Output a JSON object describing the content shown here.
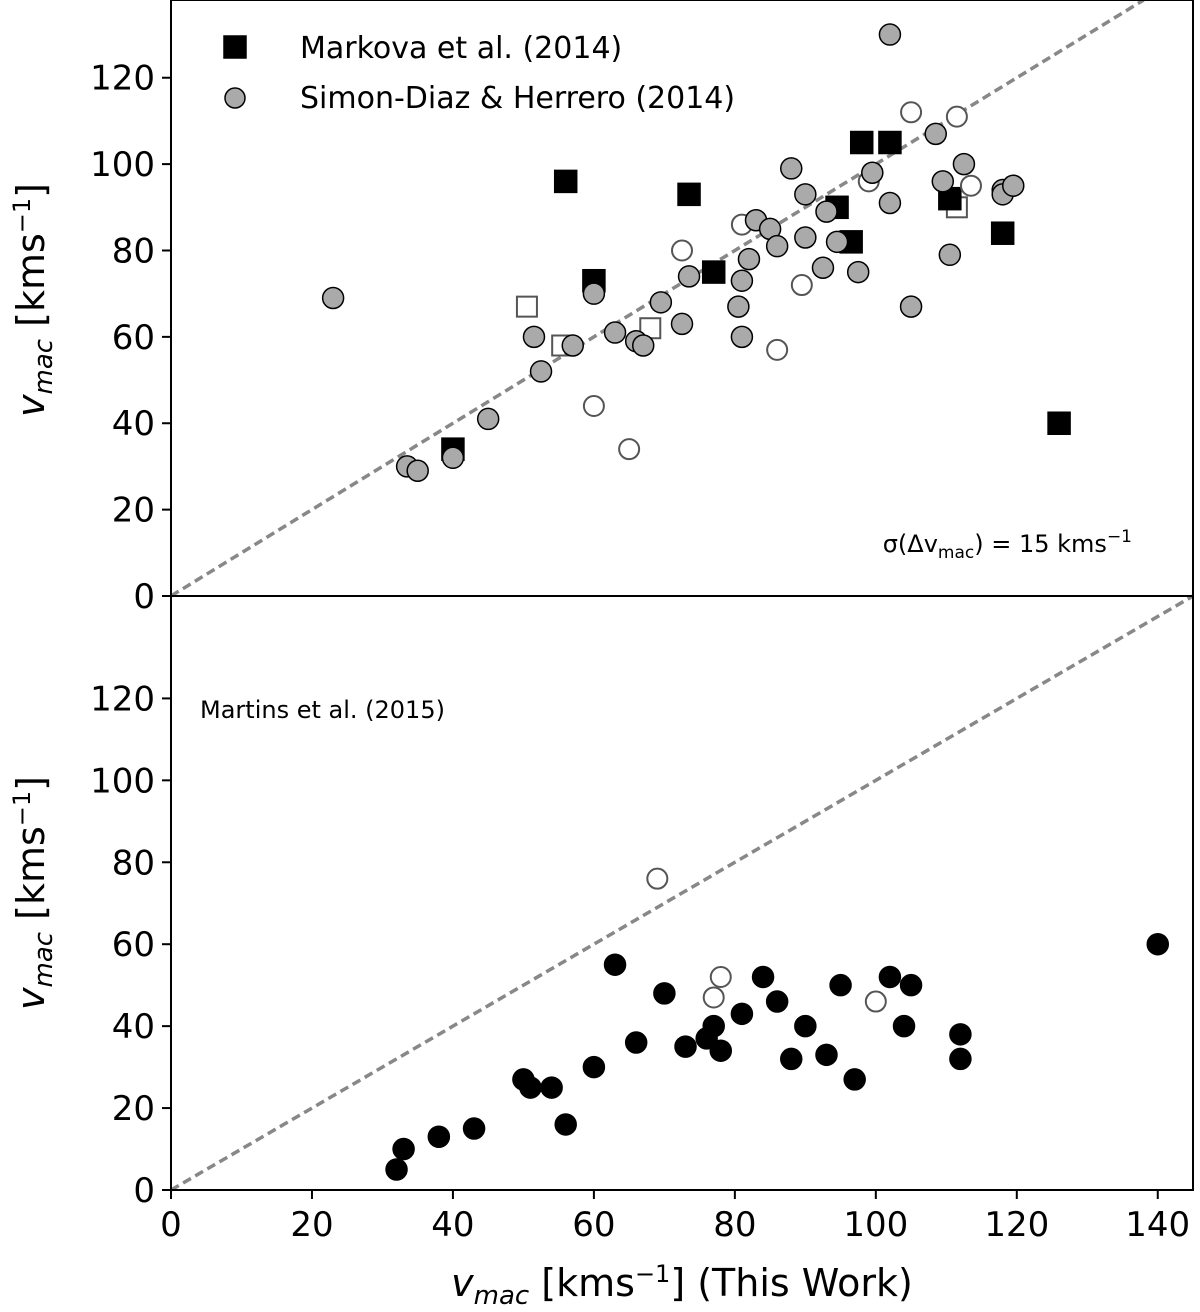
{
  "chart_data": [
    {
      "type": "scatter",
      "panel": "top",
      "xlim": [
        0,
        145
      ],
      "ylim": [
        0,
        138
      ],
      "yticks": [
        0,
        20,
        40,
        60,
        80,
        100,
        120
      ],
      "y_tick_labels": [
        "0",
        "20",
        "40",
        "60",
        "80",
        "100",
        "120"
      ],
      "ylabel": {
        "main": "v",
        "sub": "mac",
        "unit_pre": " [kms",
        "unit_sup": "−1",
        "unit_post": "]"
      },
      "identity_line": true,
      "legend_position": "top-left",
      "annotation": {
        "prefix": "σ(Δv",
        "sub": "mac",
        "mid": ") = 15 kms",
        "sup": "−1"
      },
      "series": [
        {
          "name": "Markova et al. (2014)",
          "marker": "square",
          "color": "#000000",
          "filled": [
            [
              56,
              96
            ],
            [
              60,
              73
            ],
            [
              40,
              34
            ],
            [
              73.5,
              93
            ],
            [
              77,
              75
            ],
            [
              94.5,
              90
            ],
            [
              96.5,
              82
            ],
            [
              98,
              105
            ],
            [
              102,
              105
            ],
            [
              110.5,
              92
            ],
            [
              118,
              84
            ],
            [
              126,
              40
            ]
          ],
          "open": [
            [
              50.5,
              67
            ],
            [
              55.5,
              58
            ],
            [
              68,
              62
            ],
            [
              111.5,
              90
            ]
          ]
        },
        {
          "name": "Simon-Diaz & Herrero (2014)",
          "marker": "circle",
          "color": "#aaaaaa",
          "filled": [
            [
              23,
              69
            ],
            [
              33.5,
              30
            ],
            [
              35,
              29
            ],
            [
              40,
              32
            ],
            [
              45,
              41
            ],
            [
              51.5,
              60
            ],
            [
              52.5,
              52
            ],
            [
              57,
              58
            ],
            [
              60,
              70
            ],
            [
              63,
              61
            ],
            [
              66,
              59
            ],
            [
              67,
              58
            ],
            [
              69.5,
              68
            ],
            [
              72.5,
              63
            ],
            [
              73.5,
              74
            ],
            [
              80.5,
              67
            ],
            [
              81,
              73
            ],
            [
              81,
              60
            ],
            [
              82,
              78
            ],
            [
              83,
              87
            ],
            [
              85,
              85
            ],
            [
              86,
              81
            ],
            [
              88,
              99
            ],
            [
              90,
              93
            ],
            [
              90,
              83
            ],
            [
              92.5,
              76
            ],
            [
              93,
              89
            ],
            [
              94.5,
              82
            ],
            [
              97.5,
              75
            ],
            [
              99.5,
              98
            ],
            [
              102,
              91
            ],
            [
              102,
              130
            ],
            [
              105,
              67
            ],
            [
              108.5,
              107
            ],
            [
              109.5,
              96
            ],
            [
              110.5,
              79
            ],
            [
              112.5,
              100
            ],
            [
              118,
              94
            ],
            [
              118,
              93
            ],
            [
              119.5,
              95
            ]
          ],
          "open": [
            [
              72.5,
              80
            ],
            [
              81,
              86
            ],
            [
              89.5,
              72
            ],
            [
              86,
              57
            ],
            [
              60,
              44
            ],
            [
              65,
              34
            ],
            [
              99,
              96
            ],
            [
              105,
              112
            ],
            [
              111.5,
              111
            ],
            [
              113.5,
              95
            ]
          ]
        }
      ]
    },
    {
      "type": "scatter",
      "panel": "bottom",
      "xlim": [
        0,
        145
      ],
      "ylim": [
        0,
        145
      ],
      "xticks": [
        0,
        20,
        40,
        60,
        80,
        100,
        120,
        140
      ],
      "x_tick_labels": [
        "0",
        "20",
        "40",
        "60",
        "80",
        "100",
        "120",
        "140"
      ],
      "yticks": [
        0,
        20,
        40,
        60,
        80,
        100,
        120
      ],
      "y_tick_labels": [
        "0",
        "20",
        "40",
        "60",
        "80",
        "100",
        "120"
      ],
      "xlabel": {
        "main": "v",
        "sub": "mac",
        "unit_pre": " [kms",
        "unit_sup": "−1",
        "unit_post": "] (This Work)"
      },
      "ylabel": {
        "main": "v",
        "sub": "mac",
        "unit_pre": " [kms",
        "unit_sup": "−1",
        "unit_post": "]"
      },
      "identity_line": true,
      "annotation": "Martins et al. (2015)",
      "series": [
        {
          "name": "Martins et al. (2015)",
          "marker": "circle",
          "color": "#000000",
          "filled": [
            [
              32,
              5
            ],
            [
              33,
              10
            ],
            [
              38,
              13
            ],
            [
              43,
              15
            ],
            [
              50,
              27
            ],
            [
              51,
              25
            ],
            [
              54,
              25
            ],
            [
              56,
              16
            ],
            [
              60,
              30
            ],
            [
              63,
              55
            ],
            [
              66,
              36
            ],
            [
              70,
              48
            ],
            [
              73,
              35
            ],
            [
              76,
              37
            ],
            [
              77,
              40
            ],
            [
              78,
              34
            ],
            [
              81,
              43
            ],
            [
              84,
              52
            ],
            [
              86,
              46
            ],
            [
              88,
              32
            ],
            [
              90,
              40
            ],
            [
              93,
              33
            ],
            [
              95,
              50
            ],
            [
              97,
              27
            ],
            [
              102,
              52
            ],
            [
              104,
              40
            ],
            [
              105,
              50
            ],
            [
              112,
              38
            ],
            [
              112,
              32
            ],
            [
              140,
              60
            ]
          ],
          "open": [
            [
              69,
              76
            ],
            [
              77,
              47
            ],
            [
              78,
              52
            ],
            [
              100,
              46
            ]
          ]
        }
      ]
    }
  ]
}
